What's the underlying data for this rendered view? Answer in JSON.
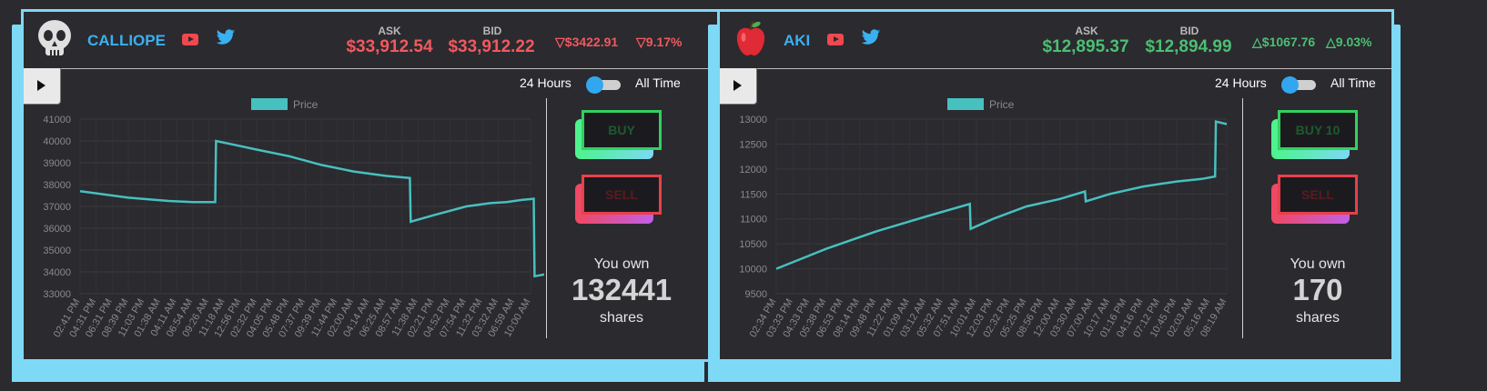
{
  "cards": [
    {
      "name": "CALLIOPE",
      "avatar_icon": "skull-icon",
      "ask_label": "ASK",
      "bid_label": "BID",
      "ask": "$33,912.54",
      "bid": "$33,912.22",
      "change": "$3422.91",
      "change_pct": "9.17%",
      "direction": "down",
      "toggle_left": "24 Hours",
      "toggle_right": "All Time",
      "buy_label": "BUY",
      "sell_label": "SELL",
      "own_prefix": "You own",
      "shares": "132441",
      "own_suffix": "shares",
      "chart_data": {
        "type": "line",
        "legend": "Price",
        "ylim": [
          33000,
          41000
        ],
        "yticks": [
          33000,
          34000,
          35000,
          36000,
          37000,
          38000,
          39000,
          40000,
          41000
        ],
        "xticks": [
          "02:41 PM",
          "04:31 PM",
          "06:31 PM",
          "08:39 PM",
          "11:03 PM",
          "01:38 AM",
          "04:11 AM",
          "06:54 AM",
          "09:26 AM",
          "11:18 AM",
          "12:56 PM",
          "02:32 PM",
          "04:05 PM",
          "05:48 PM",
          "07:37 PM",
          "09:39 PM",
          "11:44 PM",
          "02:00 AM",
          "04:14 AM",
          "06:25 AM",
          "08:57 AM",
          "11:38 AM",
          "02:21 PM",
          "04:52 PM",
          "07:54 PM",
          "11:32 PM",
          "03:32 AM",
          "06:59 AM",
          "10:00 AM"
        ],
        "points": [
          [
            0,
            37700
          ],
          [
            3,
            37400
          ],
          [
            5.5,
            37250
          ],
          [
            7,
            37200
          ],
          [
            8.4,
            37200
          ],
          [
            8.45,
            40000
          ],
          [
            11,
            39600
          ],
          [
            13,
            39300
          ],
          [
            15,
            38900
          ],
          [
            17,
            38600
          ],
          [
            19,
            38400
          ],
          [
            20.5,
            38300
          ],
          [
            20.55,
            36300
          ],
          [
            22,
            36600
          ],
          [
            24,
            37000
          ],
          [
            25.5,
            37150
          ],
          [
            26.5,
            37200
          ],
          [
            27.5,
            37300
          ],
          [
            28.2,
            37350
          ],
          [
            28.25,
            33800
          ],
          [
            29,
            33900
          ]
        ]
      }
    },
    {
      "name": "AKI",
      "avatar_icon": "apple-icon",
      "ask_label": "ASK",
      "bid_label": "BID",
      "ask": "$12,895.37",
      "bid": "$12,894.99",
      "change": "$1067.76",
      "change_pct": "9.03%",
      "direction": "up",
      "toggle_left": "24 Hours",
      "toggle_right": "All Time",
      "buy_label": "BUY 10",
      "sell_label": "SELL",
      "own_prefix": "You own",
      "shares": "170",
      "own_suffix": "shares",
      "chart_data": {
        "type": "line",
        "legend": "Price",
        "ylim": [
          9500,
          13000
        ],
        "yticks": [
          9500,
          10000,
          10500,
          11000,
          11500,
          12000,
          12500,
          13000
        ],
        "xticks": [
          "02:34 PM",
          "03:33 PM",
          "04:33 PM",
          "05:38 PM",
          "06:53 PM",
          "08:14 PM",
          "09:48 PM",
          "11:22 PM",
          "01:09 AM",
          "03:12 AM",
          "05:32 AM",
          "07:51 AM",
          "10:01 AM",
          "12:03 PM",
          "02:32 PM",
          "05:25 PM",
          "08:56 PM",
          "12:00 AM",
          "03:30 AM",
          "07:00 AM",
          "10:17 AM",
          "01:16 PM",
          "04:16 PM",
          "07:12 PM",
          "10:45 PM",
          "02:03 AM",
          "05:16 AM",
          "08:19 AM"
        ],
        "points": [
          [
            0,
            10000
          ],
          [
            3,
            10400
          ],
          [
            6,
            10750
          ],
          [
            9,
            11050
          ],
          [
            11.6,
            11300
          ],
          [
            11.65,
            10800
          ],
          [
            13,
            11000
          ],
          [
            15,
            11250
          ],
          [
            17,
            11400
          ],
          [
            18.5,
            11550
          ],
          [
            18.55,
            11350
          ],
          [
            20,
            11500
          ],
          [
            22,
            11650
          ],
          [
            24,
            11750
          ],
          [
            25.5,
            11800
          ],
          [
            26.3,
            11850
          ],
          [
            26.35,
            12950
          ],
          [
            27,
            12900
          ]
        ]
      }
    }
  ]
}
